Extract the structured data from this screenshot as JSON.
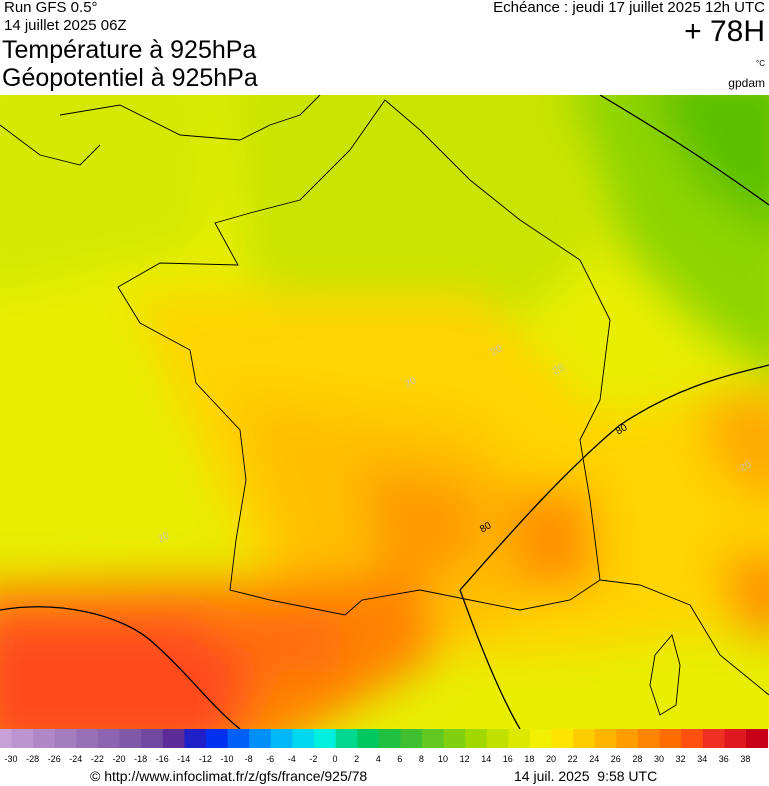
{
  "header": {
    "run": "Run GFS 0.5°",
    "run_date": "14 juillet 2025 06Z",
    "title_line1": "Température à 925hPa",
    "title_line2": "Géopotentiel à 925hPa",
    "valid": "Echéance : jeudi 17 juillet 2025 12h UTC",
    "lead": "+ 78H",
    "unit": "°C",
    "brand": "gpdam"
  },
  "map": {
    "contour_labels": [
      "80",
      "80",
      "20",
      "20",
      "20",
      "20",
      "20"
    ]
  },
  "legend": {
    "labels": [
      -30,
      -28,
      -26,
      -24,
      -22,
      -20,
      -18,
      -16,
      -14,
      -12,
      -10,
      -8,
      -6,
      -4,
      -2,
      0,
      2,
      4,
      6,
      8,
      10,
      12,
      14,
      16,
      18,
      20,
      22,
      24,
      26,
      28,
      30,
      32,
      34,
      36,
      38
    ]
  },
  "footer": {
    "url": "© http://www.infoclimat.fr/z/gfs/france/925/78",
    "timestamp": "14 juil. 2025  9:58 UTC"
  }
}
